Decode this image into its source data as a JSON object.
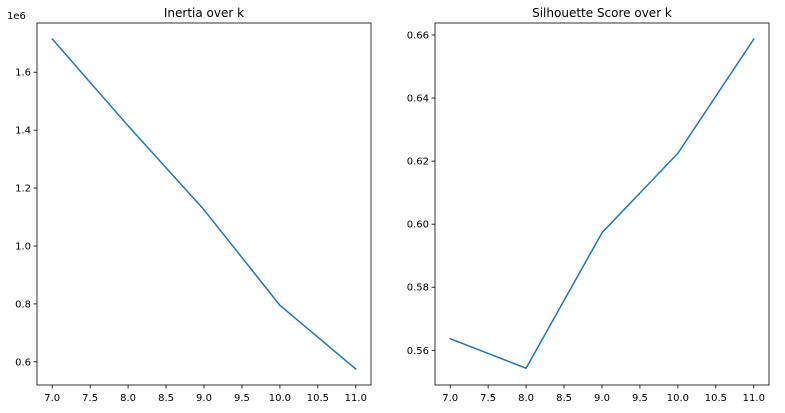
{
  "chart_data": [
    {
      "type": "line",
      "title": "Inertia over k",
      "xlabel": "",
      "ylabel": "",
      "offset_text": "1e6",
      "x": [
        7,
        8,
        9,
        10,
        11
      ],
      "series": [
        {
          "values": [
            1715000,
            1415000,
            1125000,
            795000,
            575000
          ]
        }
      ],
      "xlim": [
        6.8,
        11.2
      ],
      "ylim": [
        0.52,
        1.77
      ],
      "y_scale": 1000000,
      "xticks": [
        7.0,
        7.5,
        8.0,
        8.5,
        9.0,
        9.5,
        10.0,
        10.5,
        11.0
      ],
      "xtick_labels": [
        "7.0",
        "7.5",
        "8.0",
        "8.5",
        "9.0",
        "9.5",
        "10.0",
        "10.5",
        "11.0"
      ],
      "yticks": [
        0.6,
        0.8,
        1.0,
        1.2,
        1.4,
        1.6
      ],
      "ytick_labels": [
        "0.6",
        "0.8",
        "1.0",
        "1.2",
        "1.4",
        "1.6"
      ],
      "grid": false,
      "color": "#1f77b4"
    },
    {
      "type": "line",
      "title": "Silhouette Score over k",
      "xlabel": "",
      "ylabel": "",
      "x": [
        7,
        8,
        9,
        10,
        11
      ],
      "series": [
        {
          "values": [
            0.5637,
            0.5543,
            0.5973,
            0.6225,
            0.6587
          ]
        }
      ],
      "xlim": [
        6.8,
        11.2
      ],
      "ylim": [
        0.549,
        0.6638
      ],
      "xticks": [
        7.0,
        7.5,
        8.0,
        8.5,
        9.0,
        9.5,
        10.0,
        10.5,
        11.0
      ],
      "xtick_labels": [
        "7.0",
        "7.5",
        "8.0",
        "8.5",
        "9.0",
        "9.5",
        "10.0",
        "10.5",
        "11.0"
      ],
      "yticks": [
        0.56,
        0.58,
        0.6,
        0.62,
        0.64,
        0.66
      ],
      "ytick_labels": [
        "0.56",
        "0.58",
        "0.60",
        "0.62",
        "0.64",
        "0.66"
      ],
      "grid": false,
      "color": "#1f77b4"
    }
  ]
}
